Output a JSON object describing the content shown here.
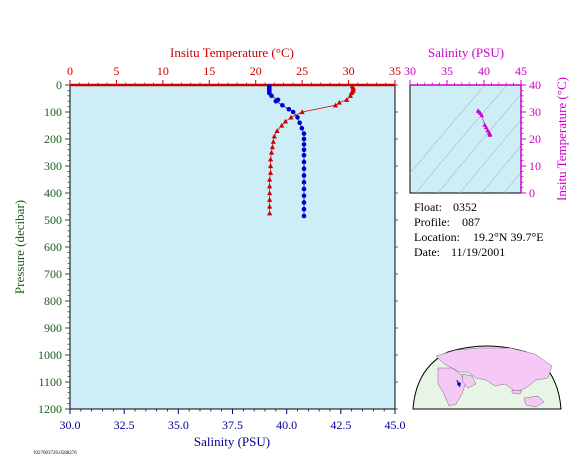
{
  "chart_data": [
    {
      "type": "scatter",
      "title": "",
      "ylabel": "Pressure (decibar)",
      "ylim": [
        1200,
        0
      ],
      "yticks": [
        0,
        100,
        200,
        300,
        400,
        500,
        600,
        700,
        800,
        900,
        1000,
        1100,
        1200
      ],
      "grid": false,
      "top_axis": {
        "label": "Insitu Temperature (°C)",
        "range": [
          0,
          35
        ],
        "ticks": [
          0,
          5,
          10,
          15,
          20,
          25,
          30,
          35
        ],
        "color": "#cc0000"
      },
      "bottom_axis": {
        "label": "Salinity (PSU)",
        "range": [
          30.0,
          45.0
        ],
        "ticks": [
          "30.0",
          "32.5",
          "35.0",
          "37.5",
          "40.0",
          "42.5",
          "45.0"
        ],
        "color": "#000099"
      },
      "series": [
        {
          "marker": "triangle",
          "color": "#cc0000",
          "axis": "top",
          "points": [
            {
              "x": 30.4,
              "y": 5
            },
            {
              "x": 30.5,
              "y": 10
            },
            {
              "x": 30.5,
              "y": 15
            },
            {
              "x": 30.5,
              "y": 20
            },
            {
              "x": 30.4,
              "y": 25
            },
            {
              "x": 30.3,
              "y": 30
            },
            {
              "x": 30.2,
              "y": 40
            },
            {
              "x": 29.8,
              "y": 55
            },
            {
              "x": 29.0,
              "y": 65
            },
            {
              "x": 28.6,
              "y": 75
            },
            {
              "x": 25.0,
              "y": 100
            },
            {
              "x": 23.8,
              "y": 120
            },
            {
              "x": 23.2,
              "y": 135
            },
            {
              "x": 22.8,
              "y": 150
            },
            {
              "x": 22.3,
              "y": 170
            },
            {
              "x": 22.0,
              "y": 190
            },
            {
              "x": 21.9,
              "y": 210
            },
            {
              "x": 21.8,
              "y": 230
            },
            {
              "x": 21.7,
              "y": 250
            },
            {
              "x": 21.6,
              "y": 275
            },
            {
              "x": 21.6,
              "y": 300
            },
            {
              "x": 21.6,
              "y": 325
            },
            {
              "x": 21.5,
              "y": 350
            },
            {
              "x": 21.5,
              "y": 375
            },
            {
              "x": 21.5,
              "y": 400
            },
            {
              "x": 21.5,
              "y": 425
            },
            {
              "x": 21.5,
              "y": 450
            },
            {
              "x": 21.5,
              "y": 475
            }
          ]
        },
        {
          "marker": "circle",
          "color": "#0000cc",
          "axis": "bottom",
          "points": [
            {
              "x": 39.2,
              "y": 5
            },
            {
              "x": 39.2,
              "y": 10
            },
            {
              "x": 39.2,
              "y": 15
            },
            {
              "x": 39.2,
              "y": 20
            },
            {
              "x": 39.2,
              "y": 25
            },
            {
              "x": 39.2,
              "y": 30
            },
            {
              "x": 39.3,
              "y": 40
            },
            {
              "x": 39.6,
              "y": 55
            },
            {
              "x": 39.5,
              "y": 60
            },
            {
              "x": 39.8,
              "y": 75
            },
            {
              "x": 40.1,
              "y": 90
            },
            {
              "x": 40.3,
              "y": 100
            },
            {
              "x": 40.5,
              "y": 120
            },
            {
              "x": 40.6,
              "y": 140
            },
            {
              "x": 40.7,
              "y": 160
            },
            {
              "x": 40.8,
              "y": 180
            },
            {
              "x": 40.8,
              "y": 200
            },
            {
              "x": 40.8,
              "y": 220
            },
            {
              "x": 40.8,
              "y": 240
            },
            {
              "x": 40.8,
              "y": 260
            },
            {
              "x": 40.8,
              "y": 285
            },
            {
              "x": 40.8,
              "y": 310
            },
            {
              "x": 40.8,
              "y": 335
            },
            {
              "x": 40.8,
              "y": 360
            },
            {
              "x": 40.8,
              "y": 385
            },
            {
              "x": 40.8,
              "y": 410
            },
            {
              "x": 40.8,
              "y": 435
            },
            {
              "x": 40.8,
              "y": 460
            },
            {
              "x": 40.8,
              "y": 485
            }
          ]
        }
      ]
    },
    {
      "type": "scatter",
      "title": "",
      "top_axis": {
        "label": "Salinity (PSU)",
        "range": [
          30,
          45
        ],
        "ticks": [
          30,
          35,
          40,
          45
        ],
        "color": "#cc00cc"
      },
      "right_axis": {
        "label": "Insitu Temperature (°C)",
        "range": [
          0,
          40
        ],
        "ticks": [
          0,
          10,
          20,
          30,
          40
        ],
        "color": "#cc00cc"
      },
      "contours": "density",
      "series": [
        {
          "marker": "triangle",
          "color": "#cc00cc",
          "points": [
            {
              "x": 39.2,
              "y": 30.5
            },
            {
              "x": 39.3,
              "y": 30.2
            },
            {
              "x": 39.5,
              "y": 29.6
            },
            {
              "x": 39.7,
              "y": 28.8
            },
            {
              "x": 40.1,
              "y": 25.2
            },
            {
              "x": 40.3,
              "y": 24.3
            },
            {
              "x": 40.5,
              "y": 23.2
            },
            {
              "x": 40.7,
              "y": 22.4
            },
            {
              "x": 40.8,
              "y": 21.9
            },
            {
              "x": 40.8,
              "y": 21.6
            },
            {
              "x": 40.8,
              "y": 21.5
            }
          ]
        }
      ]
    }
  ],
  "info": {
    "float_label": "Float:",
    "float_value": "0352",
    "profile_label": "Profile:",
    "profile_value": "087",
    "location_label": "Location:",
    "location_value": "19.2°N  39.7°E",
    "date_label": "Date:",
    "date_value": "11/19/2001"
  },
  "footer_code": "1027003726.0588276",
  "colors": {
    "plot_bg": "#cdeef7",
    "land": "#f5c8f5",
    "ocean": "#e6f5e6"
  }
}
